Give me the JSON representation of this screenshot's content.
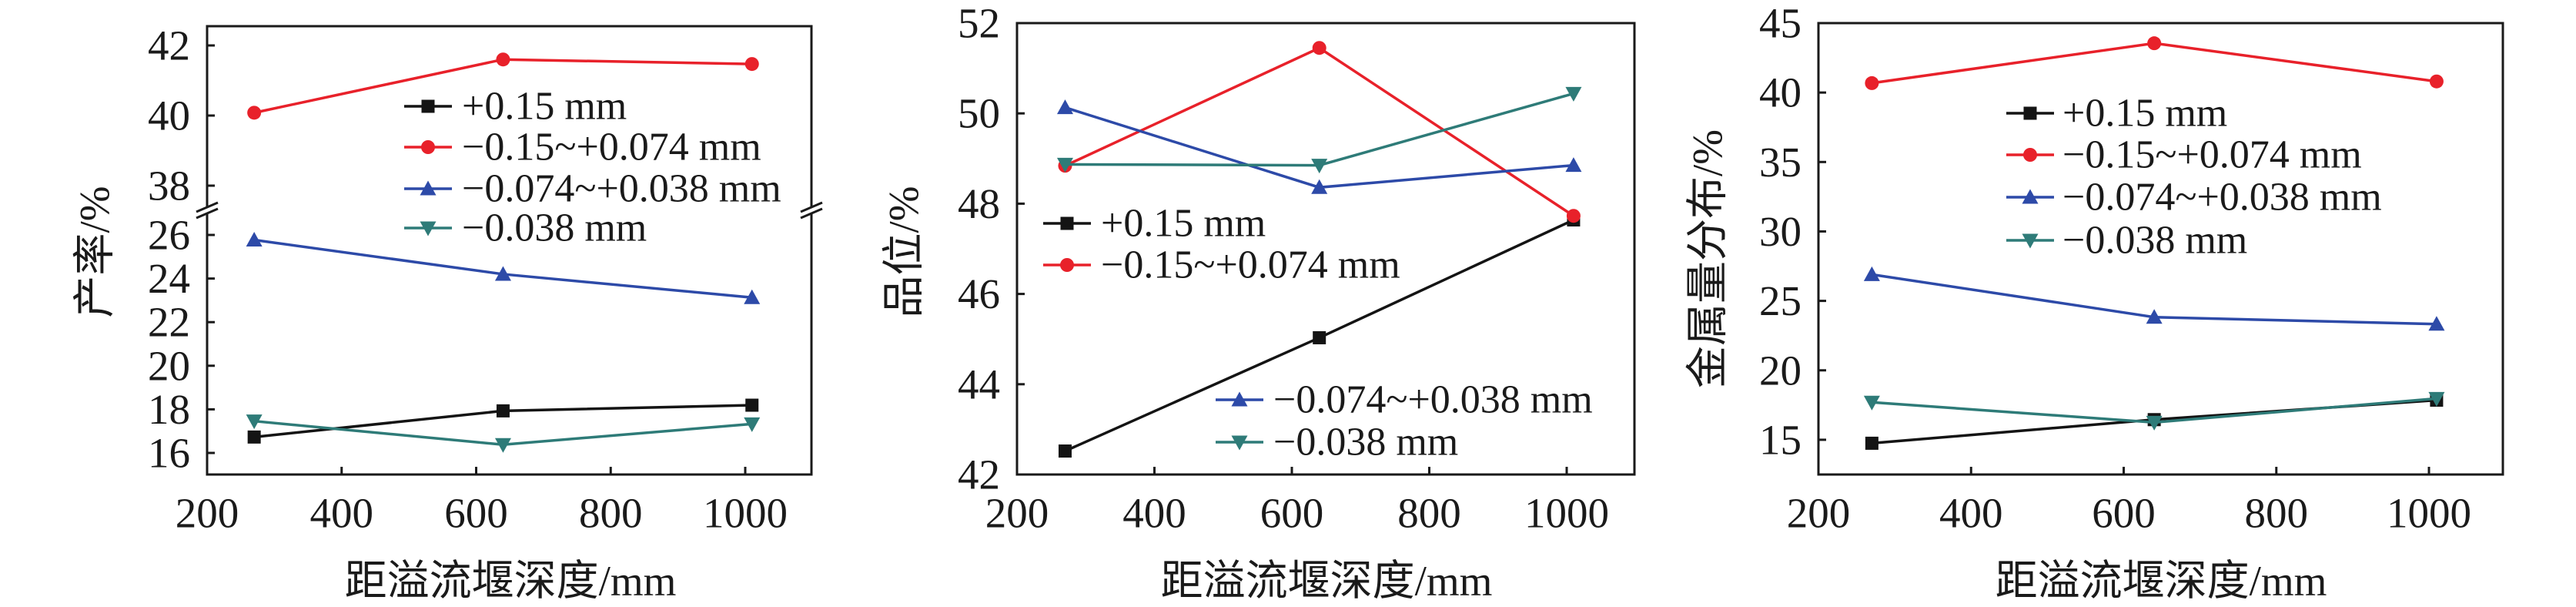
{
  "colors": {
    "s0": "#141414",
    "s1": "#e8212a",
    "s2": "#2d4aa8",
    "s3": "#2e7b78",
    "axis": "#1a1a1a"
  },
  "chart_data": [
    {
      "type": "line",
      "title": "",
      "xlabel": "距溢流堰深度/mm",
      "ylabel": "产率/%",
      "x": [
        270,
        640,
        1010
      ],
      "xlim": [
        200,
        1100
      ],
      "xticks": [
        200,
        400,
        600,
        800,
        1000
      ],
      "ylim": [
        15,
        42.5
      ],
      "y_break": [
        27.2,
        38
      ],
      "yticks": [
        16,
        18,
        20,
        22,
        24,
        26,
        38,
        40,
        42
      ],
      "grid": false,
      "legend_placement": "top-right",
      "legend_groups": [
        [
          0,
          1,
          2,
          3
        ]
      ],
      "series": [
        {
          "name": "+0.15 mm",
          "marker": "square",
          "values": [
            16.73,
            17.93,
            18.19
          ]
        },
        {
          "name": "−0.15~+0.074 mm",
          "marker": "circle",
          "values": [
            40.08,
            41.6,
            41.47
          ]
        },
        {
          "name": "−0.074~+0.038 mm",
          "marker": "triangle-up",
          "values": [
            25.77,
            24.2,
            23.13
          ]
        },
        {
          "name": "−0.038 mm",
          "marker": "triangle-down",
          "values": [
            17.46,
            16.38,
            17.33
          ]
        }
      ]
    },
    {
      "type": "line",
      "title": "",
      "xlabel": "距溢流堰深度/mm",
      "ylabel": "品位/%",
      "x": [
        270,
        640,
        1010
      ],
      "xlim": [
        200,
        1100
      ],
      "xticks": [
        200,
        400,
        600,
        800,
        1000
      ],
      "ylim": [
        42,
        52
      ],
      "yticks": [
        42,
        44,
        46,
        48,
        50,
        52
      ],
      "grid": false,
      "legend_placement": "center-left and bottom-right",
      "legend_groups": [
        [
          0,
          1
        ],
        [
          2,
          3
        ]
      ],
      "series": [
        {
          "name": "+0.15 mm",
          "marker": "square",
          "values": [
            42.52,
            45.03,
            47.64
          ]
        },
        {
          "name": "−0.15~+0.074 mm",
          "marker": "circle",
          "values": [
            48.84,
            51.45,
            47.73
          ]
        },
        {
          "name": "−0.074~+0.038 mm",
          "marker": "triangle-up",
          "values": [
            50.13,
            48.36,
            48.85
          ]
        },
        {
          "name": "−0.038 mm",
          "marker": "triangle-down",
          "values": [
            48.87,
            48.85,
            50.44
          ]
        }
      ]
    },
    {
      "type": "line",
      "title": "",
      "xlabel": "距溢流堰深度/mm",
      "ylabel": "金属量分布/%",
      "x": [
        270,
        640,
        1010
      ],
      "xlim": [
        200,
        1100
      ],
      "xticks": [
        200,
        400,
        600,
        800,
        1000
      ],
      "ylim": [
        12.5,
        45
      ],
      "yticks": [
        15,
        20,
        25,
        30,
        35,
        40,
        45
      ],
      "grid": false,
      "legend_placement": "top-center",
      "legend_groups": [
        [
          0,
          1,
          2,
          3
        ]
      ],
      "series": [
        {
          "name": "+0.15 mm",
          "marker": "square",
          "values": [
            14.75,
            16.45,
            17.85
          ]
        },
        {
          "name": "−0.15~+0.074 mm",
          "marker": "circle",
          "values": [
            40.68,
            43.55,
            40.8
          ]
        },
        {
          "name": "−0.074~+0.038 mm",
          "marker": "triangle-up",
          "values": [
            26.9,
            23.83,
            23.33
          ]
        },
        {
          "name": "−0.038 mm",
          "marker": "triangle-down",
          "values": [
            17.7,
            16.25,
            17.97
          ]
        }
      ]
    }
  ]
}
